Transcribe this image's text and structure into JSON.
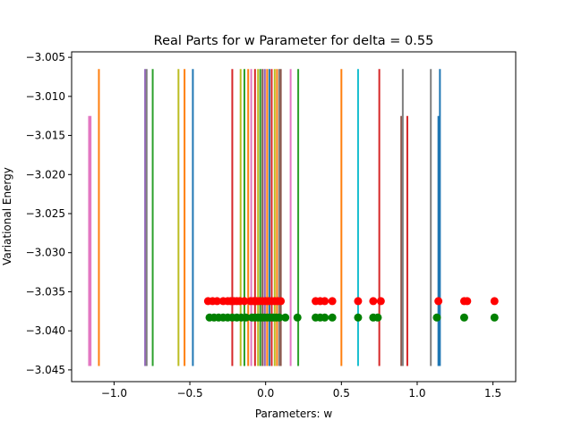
{
  "chart_data": {
    "type": "line",
    "title": "Real Parts for w Parameter for delta = 0.55",
    "xlabel": "Parameters: w",
    "ylabel": "Variational Energy",
    "xlim": [
      -1.28,
      1.65
    ],
    "ylim": [
      -3.0465,
      -3.0043
    ],
    "xticks": [
      -1.0,
      -0.5,
      0.0,
      0.5,
      1.0,
      1.5
    ],
    "xtick_labels": [
      "−1.0",
      "−0.5",
      "0.0",
      "0.5",
      "1.0",
      "1.5"
    ],
    "yticks": [
      -3.045,
      -3.04,
      -3.035,
      -3.03,
      -3.025,
      -3.02,
      -3.015,
      -3.01,
      -3.005
    ],
    "ytick_labels": [
      "−3.045",
      "−3.040",
      "−3.035",
      "−3.030",
      "−3.025",
      "−3.020",
      "−3.015",
      "−3.010",
      "−3.005"
    ],
    "grid": false,
    "colors": {
      "blue": "#1f77b4",
      "orange": "#ff7f0e",
      "green": "#2ca02c",
      "red": "#d62728",
      "purple": "#9467bd",
      "brown": "#8c564b",
      "pink": "#e377c2",
      "gray": "#7f7f7f",
      "olive": "#bcbd22",
      "cyan": "#17becf",
      "red_marker": "#ff0000",
      "green_marker": "#008000"
    },
    "vertical_lines": [
      {
        "x": -1.165,
        "y": [
          -3.0445,
          -3.0125
        ],
        "color": "#e377c2"
      },
      {
        "x": -1.155,
        "y": [
          -3.0445,
          -3.0125
        ],
        "color": "#e377c2"
      },
      {
        "x": -1.1,
        "y": [
          -3.0445,
          -3.0065
        ],
        "color": "#ff7f0e"
      },
      {
        "x": -0.795,
        "y": [
          -3.0445,
          -3.0065
        ],
        "color": "#9467bd"
      },
      {
        "x": -0.785,
        "y": [
          -3.0445,
          -3.0065
        ],
        "color": "#7f7f7f"
      },
      {
        "x": -0.745,
        "y": [
          -3.0445,
          -3.0065
        ],
        "color": "#2ca02c"
      },
      {
        "x": -0.575,
        "y": [
          -3.0445,
          -3.0065
        ],
        "color": "#bcbd22"
      },
      {
        "x": -0.535,
        "y": [
          -3.0445,
          -3.0065
        ],
        "color": "#ff7f0e"
      },
      {
        "x": -0.48,
        "y": [
          -3.0445,
          -3.0065
        ],
        "color": "#1f77b4"
      },
      {
        "x": -0.22,
        "y": [
          -3.0445,
          -3.0065
        ],
        "color": "#d62728"
      },
      {
        "x": -0.165,
        "y": [
          -3.0445,
          -3.0065
        ],
        "color": "#bcbd22"
      },
      {
        "x": -0.14,
        "y": [
          -3.0445,
          -3.0065
        ],
        "color": "#2ca02c"
      },
      {
        "x": -0.115,
        "y": [
          -3.0445,
          -3.0065
        ],
        "color": "#ff7f0e"
      },
      {
        "x": -0.095,
        "y": [
          -3.0445,
          -3.0065
        ],
        "color": "#e377c2"
      },
      {
        "x": -0.07,
        "y": [
          -3.0445,
          -3.0065
        ],
        "color": "#d62728"
      },
      {
        "x": -0.05,
        "y": [
          -3.0445,
          -3.0065
        ],
        "color": "#bcbd22"
      },
      {
        "x": -0.035,
        "y": [
          -3.0445,
          -3.0065
        ],
        "color": "#2ca02c"
      },
      {
        "x": -0.02,
        "y": [
          -3.0445,
          -3.0065
        ],
        "color": "#8c564b"
      },
      {
        "x": -0.005,
        "y": [
          -3.0445,
          -3.0065
        ],
        "color": "#9467bd"
      },
      {
        "x": 0.01,
        "y": [
          -3.0445,
          -3.0065
        ],
        "color": "#ff7f0e"
      },
      {
        "x": 0.025,
        "y": [
          -3.0445,
          -3.0065
        ],
        "color": "#1f77b4"
      },
      {
        "x": 0.04,
        "y": [
          -3.0445,
          -3.0065
        ],
        "color": "#d62728"
      },
      {
        "x": 0.06,
        "y": [
          -3.0445,
          -3.0065
        ],
        "color": "#bcbd22"
      },
      {
        "x": 0.075,
        "y": [
          -3.0445,
          -3.0065
        ],
        "color": "#ff7f0e"
      },
      {
        "x": 0.09,
        "y": [
          -3.0445,
          -3.0065
        ],
        "color": "#7f7f7f"
      },
      {
        "x": 0.1,
        "y": [
          -3.0445,
          -3.0065
        ],
        "color": "#8c564b"
      },
      {
        "x": 0.165,
        "y": [
          -3.0445,
          -3.0065
        ],
        "color": "#e377c2"
      },
      {
        "x": 0.215,
        "y": [
          -3.0445,
          -3.0065
        ],
        "color": "#2ca02c"
      },
      {
        "x": 0.5,
        "y": [
          -3.0445,
          -3.0065
        ],
        "color": "#ff7f0e"
      },
      {
        "x": 0.61,
        "y": [
          -3.0445,
          -3.0065
        ],
        "color": "#17becf"
      },
      {
        "x": 0.75,
        "y": [
          -3.0445,
          -3.0065
        ],
        "color": "#d62728"
      },
      {
        "x": 0.895,
        "y": [
          -3.0445,
          -3.0125
        ],
        "color": "#8c564b"
      },
      {
        "x": 0.905,
        "y": [
          -3.0445,
          -3.0065
        ],
        "color": "#7f7f7f"
      },
      {
        "x": 0.935,
        "y": [
          -3.0445,
          -3.0125
        ],
        "color": "#d62728"
      },
      {
        "x": 1.09,
        "y": [
          -3.0445,
          -3.0065
        ],
        "color": "#7f7f7f"
      },
      {
        "x": 1.14,
        "y": [
          -3.0445,
          -3.0125
        ],
        "color": "#1f77b4"
      },
      {
        "x": 1.15,
        "y": [
          -3.0445,
          -3.0065
        ],
        "color": "#1f77b4"
      }
    ],
    "red_dots": {
      "y": -3.0362,
      "color": "#ff0000",
      "x": [
        -0.38,
        -0.35,
        -0.32,
        -0.28,
        -0.25,
        -0.23,
        -0.21,
        -0.19,
        -0.17,
        -0.14,
        -0.1,
        -0.08,
        -0.06,
        -0.04,
        -0.02,
        0.0,
        0.02,
        0.04,
        0.06,
        0.08,
        0.1,
        0.33,
        0.36,
        0.39,
        0.44,
        0.61,
        0.71,
        0.76,
        1.14,
        1.31,
        1.33,
        1.51
      ]
    },
    "green_dots": {
      "y": -3.0383,
      "color": "#008000",
      "x": [
        -0.37,
        -0.34,
        -0.31,
        -0.28,
        -0.25,
        -0.22,
        -0.19,
        -0.16,
        -0.13,
        -0.09,
        -0.07,
        -0.05,
        -0.03,
        -0.01,
        0.01,
        0.03,
        0.05,
        0.07,
        0.09,
        0.13,
        0.21,
        0.33,
        0.36,
        0.39,
        0.44,
        0.61,
        0.71,
        0.74,
        1.13,
        1.31,
        1.51
      ]
    }
  }
}
